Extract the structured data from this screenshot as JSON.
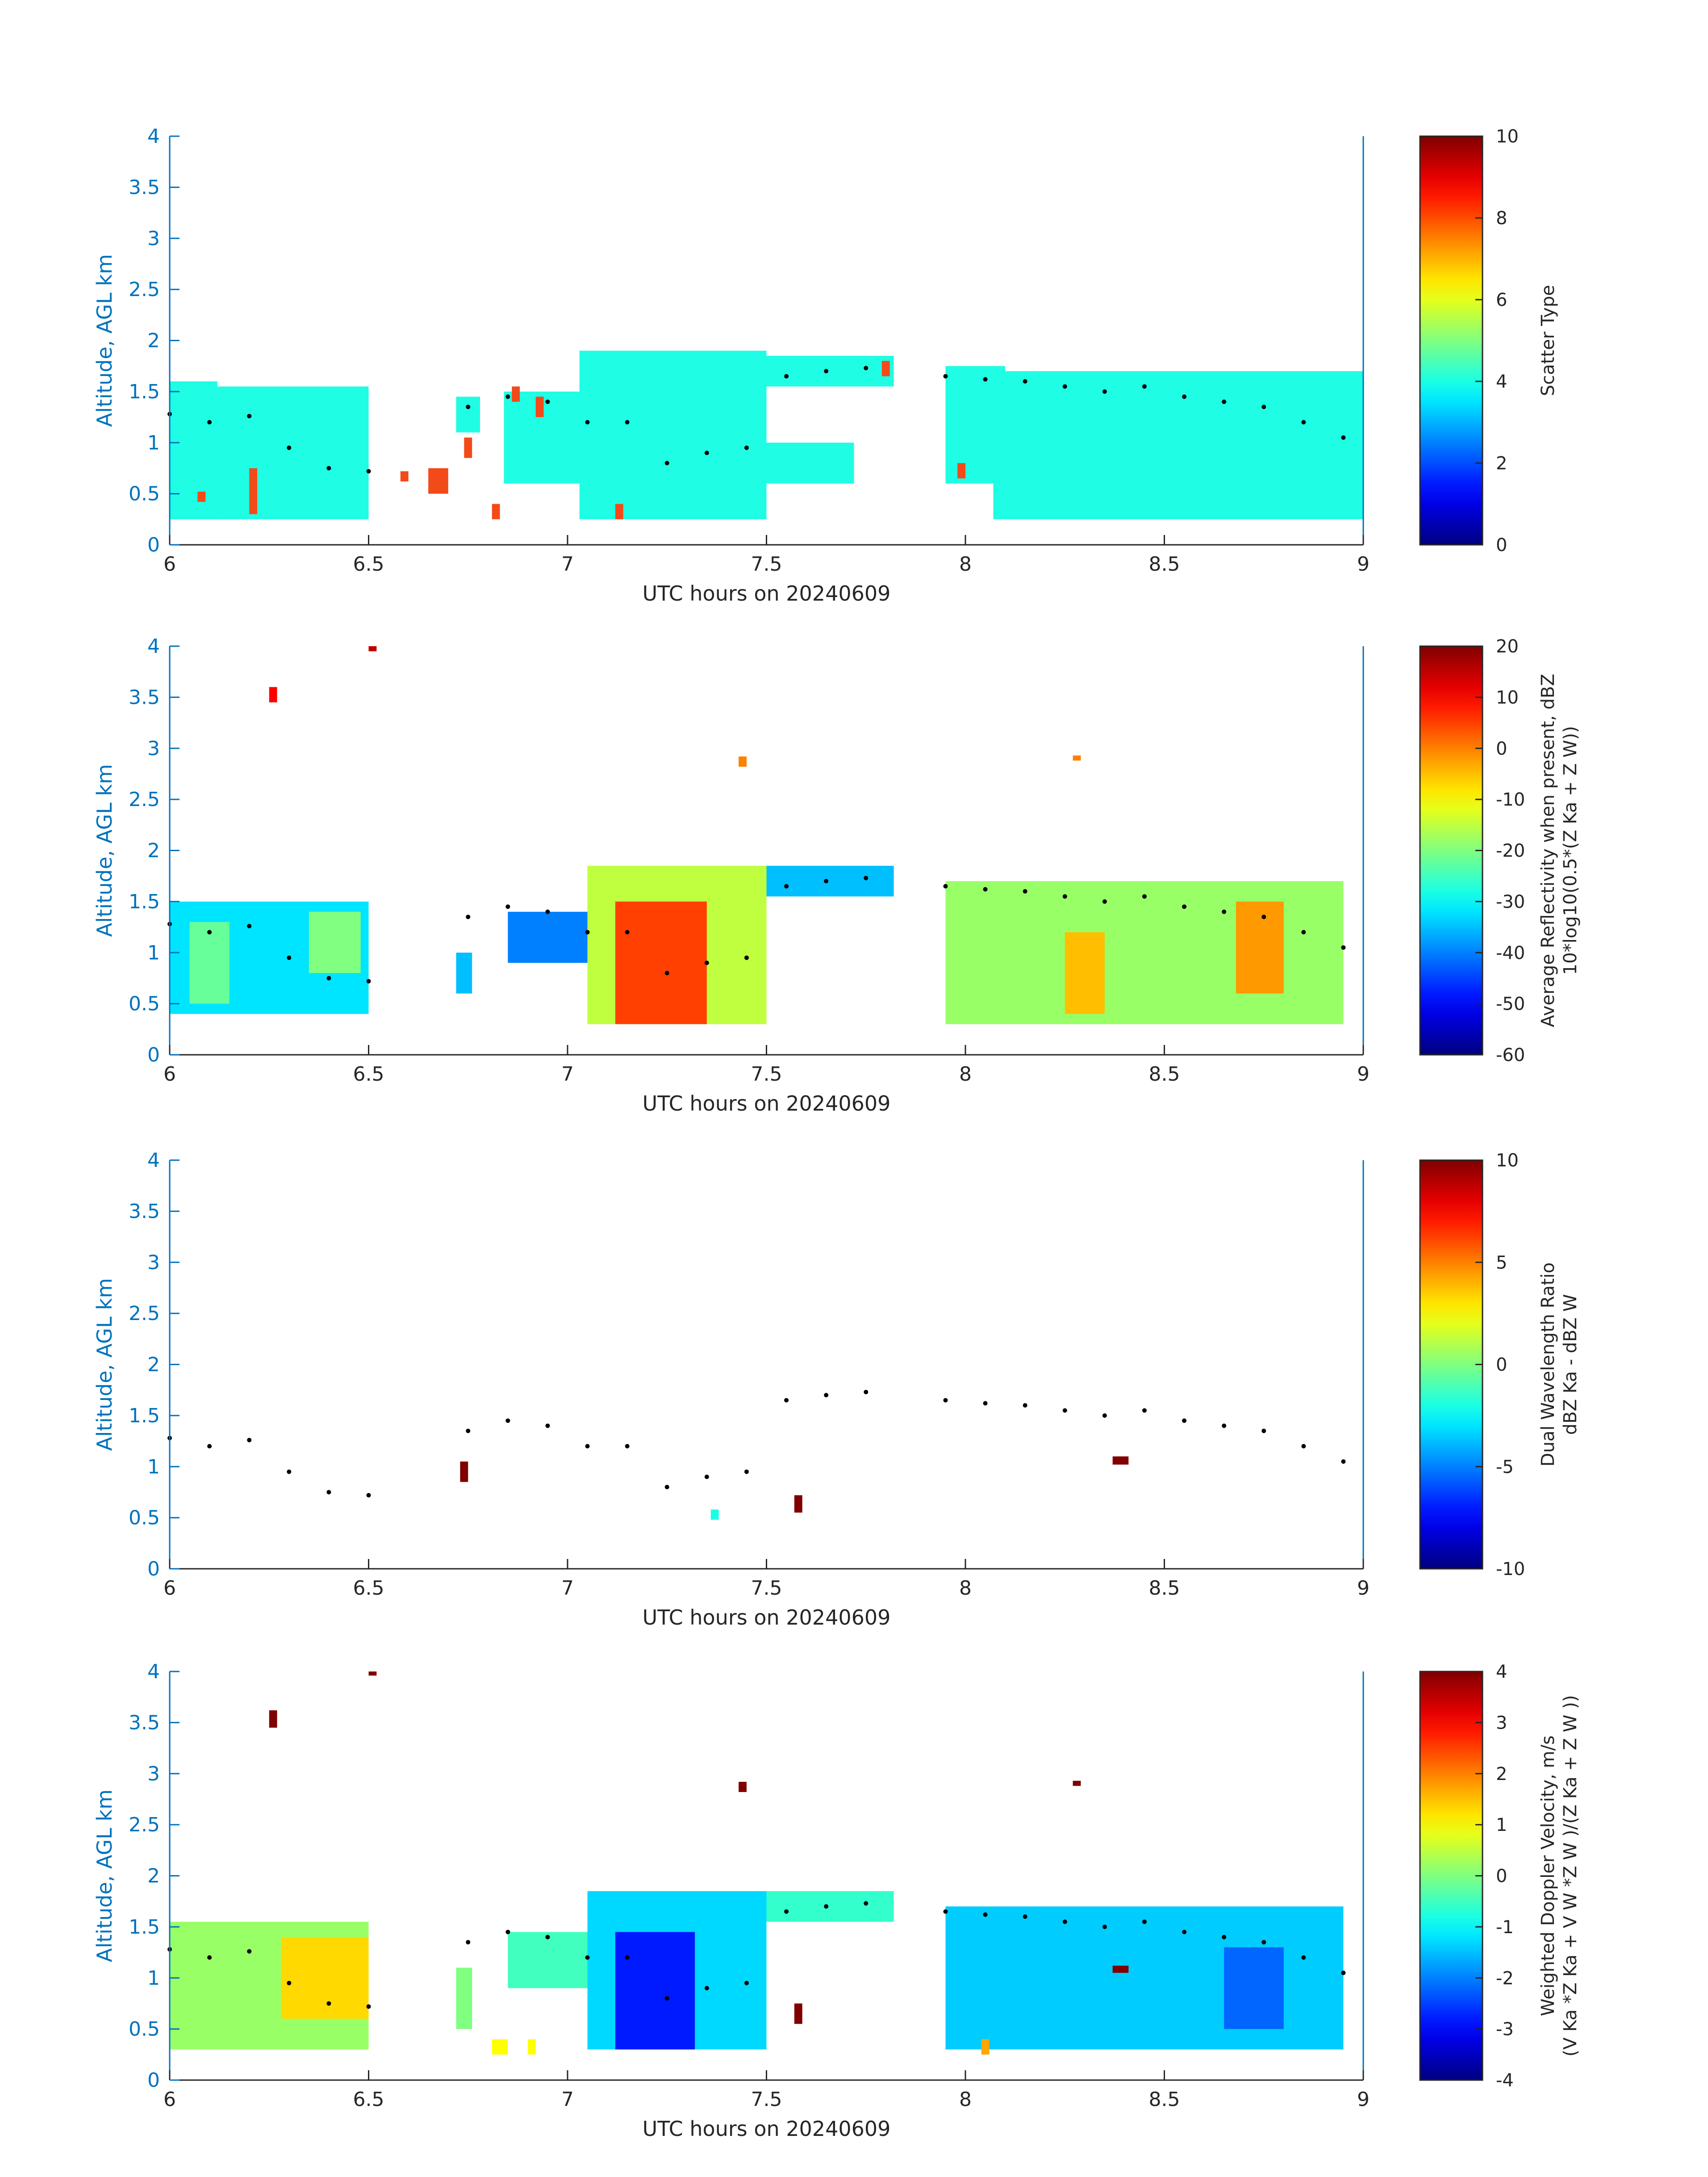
{
  "figure": {
    "colors": {
      "axis_left": "#0072bd",
      "axis_box": "#262626",
      "scatter_fill": "#1ffde4",
      "scatter_alt": "#f24a18",
      "height_dots": "#000000"
    }
  },
  "chart_data": [
    {
      "type": "heatmap",
      "xlabel": "UTC hours on 20240609",
      "ylabel": "Altitude, AGL km",
      "xlim": [
        6,
        9
      ],
      "ylim": [
        0,
        4
      ],
      "xticks": [
        "6",
        "6.5",
        "7",
        "7.5",
        "8",
        "8.5",
        "9"
      ],
      "yticks": [
        "0",
        "0.5",
        "1",
        "1.5",
        "2",
        "2.5",
        "3",
        "3.5",
        "4"
      ],
      "colorbar": {
        "label": "Scatter Type",
        "label2": "",
        "range": [
          0,
          10
        ],
        "ticks": [
          "0",
          "2",
          "4",
          "6",
          "8",
          "10"
        ]
      },
      "regions": [
        {
          "x": [
            6.0,
            6.12
          ],
          "y": [
            0.25,
            1.6
          ],
          "value": 4
        },
        {
          "x": [
            6.12,
            6.5
          ],
          "y": [
            0.25,
            1.55
          ],
          "value": 4
        },
        {
          "x": [
            6.72,
            6.78
          ],
          "y": [
            1.1,
            1.45
          ],
          "value": 4
        },
        {
          "x": [
            6.84,
            7.2
          ],
          "y": [
            0.6,
            1.5
          ],
          "value": 4
        },
        {
          "x": [
            7.03,
            7.5
          ],
          "y": [
            0.25,
            1.9
          ],
          "value": 4
        },
        {
          "x": [
            7.5,
            7.82
          ],
          "y": [
            1.55,
            1.85
          ],
          "value": 4
        },
        {
          "x": [
            7.5,
            7.72
          ],
          "y": [
            0.6,
            1.0
          ],
          "value": 4
        },
        {
          "x": [
            7.95,
            8.1
          ],
          "y": [
            0.6,
            1.75
          ],
          "value": 4
        },
        {
          "x": [
            8.07,
            9.0
          ],
          "y": [
            0.25,
            1.7
          ],
          "value": 4
        },
        {
          "x": [
            6.2,
            6.22
          ],
          "y": [
            0.3,
            0.75
          ],
          "value": 8
        },
        {
          "x": [
            6.07,
            6.09
          ],
          "y": [
            0.42,
            0.52
          ],
          "value": 8
        },
        {
          "x": [
            6.58,
            6.6
          ],
          "y": [
            0.62,
            0.72
          ],
          "value": 8
        },
        {
          "x": [
            6.65,
            6.7
          ],
          "y": [
            0.5,
            0.75
          ],
          "value": 8
        },
        {
          "x": [
            6.74,
            6.76
          ],
          "y": [
            0.85,
            1.05
          ],
          "value": 8
        },
        {
          "x": [
            6.81,
            6.83
          ],
          "y": [
            0.25,
            0.4
          ],
          "value": 8
        },
        {
          "x": [
            6.86,
            6.88
          ],
          "y": [
            1.4,
            1.55
          ],
          "value": 8
        },
        {
          "x": [
            6.92,
            6.94
          ],
          "y": [
            1.25,
            1.45
          ],
          "value": 8
        },
        {
          "x": [
            7.12,
            7.14
          ],
          "y": [
            0.25,
            0.4
          ],
          "value": 8
        },
        {
          "x": [
            7.79,
            7.81
          ],
          "y": [
            1.65,
            1.8
          ],
          "value": 8
        },
        {
          "x": [
            7.98,
            8.0
          ],
          "y": [
            0.65,
            0.8
          ],
          "value": 8
        }
      ],
      "height_series": {
        "x": [
          6.0,
          6.1,
          6.2,
          6.3,
          6.4,
          6.5,
          6.75,
          6.85,
          6.95,
          7.05,
          7.15,
          7.25,
          7.35,
          7.45,
          7.55,
          7.65,
          7.75,
          7.95,
          8.05,
          8.15,
          8.25,
          8.35,
          8.45,
          8.55,
          8.65,
          8.75,
          8.85,
          8.95
        ],
        "y": [
          1.28,
          1.2,
          1.26,
          0.95,
          0.75,
          0.72,
          1.35,
          1.45,
          1.4,
          1.2,
          1.2,
          0.8,
          0.9,
          0.95,
          1.65,
          1.7,
          1.73,
          1.65,
          1.62,
          1.6,
          1.55,
          1.5,
          1.55,
          1.45,
          1.4,
          1.35,
          1.2,
          1.05
        ]
      }
    },
    {
      "type": "heatmap",
      "xlabel": "UTC hours on 20240609",
      "ylabel": "Altitude, AGL km",
      "xlim": [
        6,
        9
      ],
      "ylim": [
        0,
        4
      ],
      "xticks": [
        "6",
        "6.5",
        "7",
        "7.5",
        "8",
        "8.5",
        "9"
      ],
      "yticks": [
        "0",
        "0.5",
        "1",
        "1.5",
        "2",
        "2.5",
        "3",
        "3.5",
        "4"
      ],
      "colorbar": {
        "label": "Average Reflectivity when present, dBZ",
        "label2": "10*log10(0.5*(Z Ka + Z W))",
        "range": [
          -60,
          20
        ],
        "ticks": [
          "-60",
          "-50",
          "-40",
          "-30",
          "-20",
          "-10",
          "0",
          "10",
          "20"
        ]
      },
      "regions": [
        {
          "x": [
            6.0,
            6.5
          ],
          "y": [
            0.4,
            1.5
          ],
          "value": -32
        },
        {
          "x": [
            6.05,
            6.15
          ],
          "y": [
            0.5,
            1.3
          ],
          "value": -22
        },
        {
          "x": [
            6.35,
            6.48
          ],
          "y": [
            0.8,
            1.4
          ],
          "value": -20
        },
        {
          "x": [
            6.72,
            6.76
          ],
          "y": [
            0.6,
            1.0
          ],
          "value": -35
        },
        {
          "x": [
            6.85,
            7.2
          ],
          "y": [
            0.9,
            1.4
          ],
          "value": -40
        },
        {
          "x": [
            7.05,
            7.5
          ],
          "y": [
            0.3,
            1.85
          ],
          "value": -15
        },
        {
          "x": [
            7.12,
            7.35
          ],
          "y": [
            0.3,
            1.5
          ],
          "value": 5
        },
        {
          "x": [
            7.5,
            7.82
          ],
          "y": [
            1.55,
            1.85
          ],
          "value": -35
        },
        {
          "x": [
            7.95,
            8.95
          ],
          "y": [
            0.3,
            1.7
          ],
          "value": -18
        },
        {
          "x": [
            8.25,
            8.35
          ],
          "y": [
            0.4,
            1.2
          ],
          "value": -5
        },
        {
          "x": [
            8.68,
            8.8
          ],
          "y": [
            0.6,
            1.5
          ],
          "value": -2
        },
        {
          "x": [
            6.25,
            6.27
          ],
          "y": [
            3.45,
            3.6
          ],
          "value": 10
        },
        {
          "x": [
            6.5,
            6.52
          ],
          "y": [
            3.95,
            4.0
          ],
          "value": 15
        },
        {
          "x": [
            7.43,
            7.45
          ],
          "y": [
            2.82,
            2.92
          ],
          "value": 0
        },
        {
          "x": [
            8.27,
            8.29
          ],
          "y": [
            2.88,
            2.93
          ],
          "value": 0
        }
      ],
      "height_series": {
        "x": [
          6.0,
          6.1,
          6.2,
          6.3,
          6.4,
          6.5,
          6.75,
          6.85,
          6.95,
          7.05,
          7.15,
          7.25,
          7.35,
          7.45,
          7.55,
          7.65,
          7.75,
          7.95,
          8.05,
          8.15,
          8.25,
          8.35,
          8.45,
          8.55,
          8.65,
          8.75,
          8.85,
          8.95
        ],
        "y": [
          1.28,
          1.2,
          1.26,
          0.95,
          0.75,
          0.72,
          1.35,
          1.45,
          1.4,
          1.2,
          1.2,
          0.8,
          0.9,
          0.95,
          1.65,
          1.7,
          1.73,
          1.65,
          1.62,
          1.6,
          1.55,
          1.5,
          1.55,
          1.45,
          1.4,
          1.35,
          1.2,
          1.05
        ]
      }
    },
    {
      "type": "heatmap",
      "xlabel": "UTC hours on 20240609",
      "ylabel": "Altitude, AGL km",
      "xlim": [
        6,
        9
      ],
      "ylim": [
        0,
        4
      ],
      "xticks": [
        "6",
        "6.5",
        "7",
        "7.5",
        "8",
        "8.5",
        "9"
      ],
      "yticks": [
        "0",
        "0.5",
        "1",
        "1.5",
        "2",
        "2.5",
        "3",
        "3.5",
        "4"
      ],
      "colorbar": {
        "label": "Dual Wavelength Ratio",
        "label2": "dBZ Ka - dBZ W",
        "range": [
          -10,
          10
        ],
        "ticks": [
          "-10",
          "-5",
          "0",
          "5",
          "10"
        ]
      },
      "regions": [
        {
          "x": [
            6.73,
            6.75
          ],
          "y": [
            0.85,
            1.05
          ],
          "value": 10
        },
        {
          "x": [
            7.36,
            7.38
          ],
          "y": [
            0.48,
            0.58
          ],
          "value": -2
        },
        {
          "x": [
            7.57,
            7.59
          ],
          "y": [
            0.55,
            0.72
          ],
          "value": 10
        },
        {
          "x": [
            8.37,
            8.41
          ],
          "y": [
            1.02,
            1.1
          ],
          "value": 10
        }
      ],
      "height_series": {
        "x": [
          6.0,
          6.1,
          6.2,
          6.3,
          6.4,
          6.5,
          6.75,
          6.85,
          6.95,
          7.05,
          7.15,
          7.25,
          7.35,
          7.45,
          7.55,
          7.65,
          7.75,
          7.95,
          8.05,
          8.15,
          8.25,
          8.35,
          8.45,
          8.55,
          8.65,
          8.75,
          8.85,
          8.95
        ],
        "y": [
          1.28,
          1.2,
          1.26,
          0.95,
          0.75,
          0.72,
          1.35,
          1.45,
          1.4,
          1.2,
          1.2,
          0.8,
          0.9,
          0.95,
          1.65,
          1.7,
          1.73,
          1.65,
          1.62,
          1.6,
          1.55,
          1.5,
          1.55,
          1.45,
          1.4,
          1.35,
          1.2,
          1.05
        ]
      }
    },
    {
      "type": "heatmap",
      "xlabel": "UTC hours on 20240609",
      "ylabel": "Altitude, AGL km",
      "xlim": [
        6,
        9
      ],
      "ylim": [
        0,
        4
      ],
      "xticks": [
        "6",
        "6.5",
        "7",
        "7.5",
        "8",
        "8.5",
        "9"
      ],
      "yticks": [
        "0",
        "0.5",
        "1",
        "1.5",
        "2",
        "2.5",
        "3",
        "3.5",
        "4"
      ],
      "colorbar": {
        "label": "Weighted Doppler Velocity, m/s",
        "label2": "(V Ka *Z Ka + V W *Z W )/(Z Ka + Z W ))",
        "range": [
          -4,
          4
        ],
        "ticks": [
          "-4",
          "-3",
          "-2",
          "-1",
          "0",
          "1",
          "2",
          "3",
          "4"
        ]
      },
      "regions": [
        {
          "x": [
            6.0,
            6.5
          ],
          "y": [
            0.3,
            1.55
          ],
          "value": 0.2
        },
        {
          "x": [
            6.28,
            6.5
          ],
          "y": [
            0.6,
            1.4
          ],
          "value": 1.3
        },
        {
          "x": [
            6.72,
            6.76
          ],
          "y": [
            0.5,
            1.1
          ],
          "value": 0
        },
        {
          "x": [
            6.85,
            7.2
          ],
          "y": [
            0.9,
            1.45
          ],
          "value": -0.5
        },
        {
          "x": [
            7.05,
            7.5
          ],
          "y": [
            0.3,
            1.85
          ],
          "value": -1.3
        },
        {
          "x": [
            7.12,
            7.32
          ],
          "y": [
            0.3,
            1.45
          ],
          "value": -2.8
        },
        {
          "x": [
            7.5,
            7.82
          ],
          "y": [
            1.55,
            1.85
          ],
          "value": -0.6
        },
        {
          "x": [
            7.95,
            8.95
          ],
          "y": [
            0.3,
            1.7
          ],
          "value": -1.4
        },
        {
          "x": [
            8.65,
            8.8
          ],
          "y": [
            0.5,
            1.3
          ],
          "value": -2.2
        },
        {
          "x": [
            6.25,
            6.27
          ],
          "y": [
            3.45,
            3.62
          ],
          "value": 4
        },
        {
          "x": [
            6.5,
            6.52
          ],
          "y": [
            3.96,
            4.0
          ],
          "value": 4
        },
        {
          "x": [
            7.43,
            7.45
          ],
          "y": [
            2.82,
            2.92
          ],
          "value": 4
        },
        {
          "x": [
            8.27,
            8.29
          ],
          "y": [
            2.88,
            2.93
          ],
          "value": 4
        },
        {
          "x": [
            6.81,
            6.85
          ],
          "y": [
            0.25,
            0.4
          ],
          "value": 1
        },
        {
          "x": [
            6.9,
            6.92
          ],
          "y": [
            0.25,
            0.4
          ],
          "value": 1
        },
        {
          "x": [
            7.57,
            7.59
          ],
          "y": [
            0.55,
            0.75
          ],
          "value": 4
        },
        {
          "x": [
            8.04,
            8.06
          ],
          "y": [
            0.25,
            0.4
          ],
          "value": 1.7
        },
        {
          "x": [
            8.37,
            8.41
          ],
          "y": [
            1.05,
            1.12
          ],
          "value": 4
        }
      ],
      "height_series": {
        "x": [
          6.0,
          6.1,
          6.2,
          6.3,
          6.4,
          6.5,
          6.75,
          6.85,
          6.95,
          7.05,
          7.15,
          7.25,
          7.35,
          7.45,
          7.55,
          7.65,
          7.75,
          7.95,
          8.05,
          8.15,
          8.25,
          8.35,
          8.45,
          8.55,
          8.65,
          8.75,
          8.85,
          8.95
        ],
        "y": [
          1.28,
          1.2,
          1.26,
          0.95,
          0.75,
          0.72,
          1.35,
          1.45,
          1.4,
          1.2,
          1.2,
          0.8,
          0.9,
          0.95,
          1.65,
          1.7,
          1.73,
          1.65,
          1.62,
          1.6,
          1.55,
          1.5,
          1.55,
          1.45,
          1.4,
          1.35,
          1.2,
          1.05
        ]
      }
    }
  ]
}
